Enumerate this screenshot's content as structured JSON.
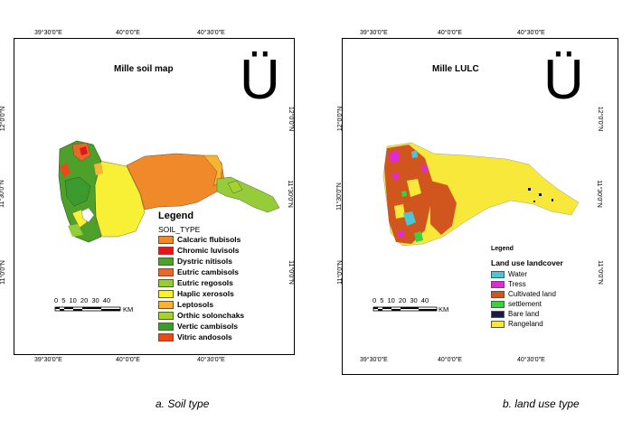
{
  "soil_map": {
    "title": "Mille soil map",
    "north_symbol": "Ü",
    "top_ticks": [
      "39°30'0\"E",
      "40°0'0\"E",
      "40°30'0\"E"
    ],
    "bottom_ticks": [
      "39°30'0\"E",
      "40°0'0\"E",
      "40°30'0\"E"
    ],
    "lat_ticks": [
      "12°0'0\"N",
      "11°30'0\"N",
      "11°0'0\"N"
    ],
    "legend": {
      "title": "Legend",
      "subtitle": "SOIL_TYPE",
      "items": [
        {
          "label": "Calcaric flubisols",
          "color": "#f0892a"
        },
        {
          "label": "Chromic luvisols",
          "color": "#e8141c"
        },
        {
          "label": "Dystric nitisols",
          "color": "#4da02a"
        },
        {
          "label": "Eutric cambisols",
          "color": "#e8682a"
        },
        {
          "label": "Eutric regosols",
          "color": "#96cc3a"
        },
        {
          "label": "Haplic xerosols",
          "color": "#f7f034"
        },
        {
          "label": "Leptosols",
          "color": "#f7b433"
        },
        {
          "label": "Orthic solonchaks",
          "color": "#a4d233"
        },
        {
          "label": "Vertic cambisols",
          "color": "#3c9a2e"
        },
        {
          "label": "Vitric andosols",
          "color": "#e84a1c"
        }
      ]
    },
    "scale": {
      "numbers": "0 5 10 20 30 40",
      "unit": "KM"
    }
  },
  "lulc_map": {
    "title": "Mille LULC",
    "north_symbol": "Ü",
    "top_ticks": [
      "39°30'0\"E",
      "40°0'0\"E",
      "40°30'0\"E"
    ],
    "bottom_ticks": [
      "39°30'0\"E",
      "40°0'0\"E",
      "40°30'0\"E"
    ],
    "lat_ticks": [
      "12°0'0\"N",
      "11°30'0\"N",
      "11°0'0\"N"
    ],
    "legend": {
      "title": "Legend",
      "subtitle": "Land use landcover",
      "items": [
        {
          "label": "Water",
          "color": "#4cc6d2"
        },
        {
          "label": "Tress",
          "color": "#e02ad8"
        },
        {
          "label": "Cultivated land",
          "color": "#d0561e"
        },
        {
          "label": "settlement",
          "color": "#38d23a"
        },
        {
          "label": "Bare land",
          "color": "#141c4a"
        },
        {
          "label": "Rangeland",
          "color": "#f7e83a"
        }
      ]
    },
    "scale": {
      "numbers": "0 5 10 20 30 40",
      "unit": "KM"
    }
  },
  "captions": {
    "left": "a.   Soil type",
    "right": "b.  land use type"
  }
}
